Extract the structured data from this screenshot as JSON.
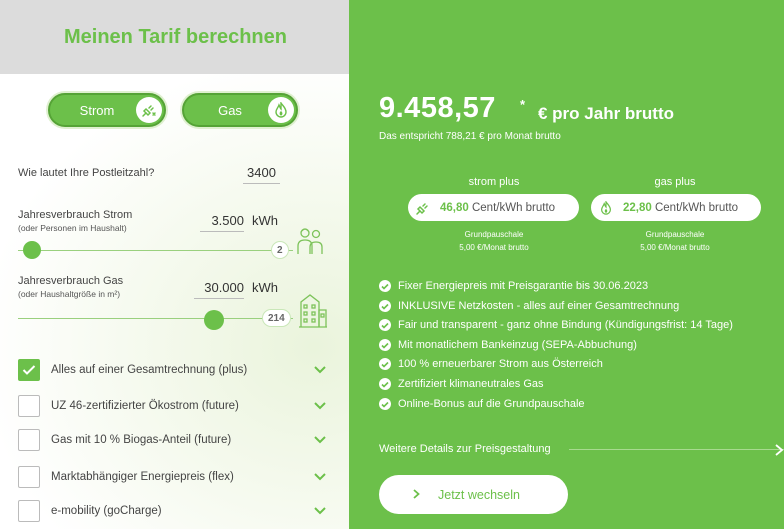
{
  "calculator": {
    "title": "Meinen Tarif berechnen",
    "toggles": {
      "strom": "Strom",
      "gas": "Gas"
    },
    "postcode": {
      "label": "Wie lautet Ihre Postleitzahl?",
      "value": "3400"
    },
    "strom_usage": {
      "label": "Jahresverbrauch Strom",
      "sub": "(oder Personen im Haushalt)",
      "value": "3.500",
      "unit": "kWh",
      "persons": "2",
      "slider_fraction": 0.02
    },
    "gas_usage": {
      "label": "Jahresverbrauch Gas",
      "sub": "(oder Haushaltgröße in m²)",
      "value": "30.000",
      "unit": "kWh",
      "size": "214",
      "slider_fraction": 0.73
    },
    "options": [
      {
        "label": "Alles auf einer Gesamtrechnung (plus)",
        "checked": true
      },
      {
        "label": "UZ 46-zertifizierter Ökostrom (future)",
        "checked": false
      },
      {
        "label": "Gas mit 10 % Biogas-Anteil (future)",
        "checked": false
      },
      {
        "label": "Marktabhängiger Energiepreis (flex)",
        "checked": false
      },
      {
        "label": "e-mobility (goCharge)",
        "checked": false
      }
    ]
  },
  "result": {
    "price": "9.458,57",
    "price_unit": "€ pro Jahr brutto",
    "price_sub": "Das entspricht 788,21 € pro Monat brutto",
    "strom": {
      "name": "strom plus",
      "price_value": "46,80",
      "price_unit": "Cent/kWh brutto",
      "gp_label": "Grundpauschale",
      "gp_value": "5,00 €/Monat brutto"
    },
    "gas": {
      "name": "gas plus",
      "price_value": "22,80",
      "price_unit": "Cent/kWh brutto",
      "gp_label": "Grundpauschale",
      "gp_value": "5,00 €/Monat brutto"
    },
    "features": [
      "Fixer Energiepreis mit Preisgarantie bis 30.06.2023",
      "INKLUSIVE Netzkosten - alles auf einer Gesamtrechnung",
      "Fair und transparent - ganz ohne Bindung (Kündigungsfrist: 14 Tage)",
      "Mit monatlichem Bankeinzug (SEPA-Abbuchung)",
      "100 % erneuerbarer Strom aus Österreich",
      "Zertifiziert klimaneutrales Gas",
      "Online-Bonus auf die Grundpauschale"
    ],
    "details_link": "Weitere Details zur Preisgestaltung",
    "cta": "Jetzt wechseln"
  },
  "colors": {
    "brand_green": "#6cc04a",
    "header_gray": "#dcdcdc"
  },
  "icons": [
    "plug-icon",
    "flame-icon",
    "persons-icon",
    "house-icon",
    "check-icon",
    "chevron-down-icon",
    "chevron-right-icon",
    "arrow-right-icon"
  ]
}
